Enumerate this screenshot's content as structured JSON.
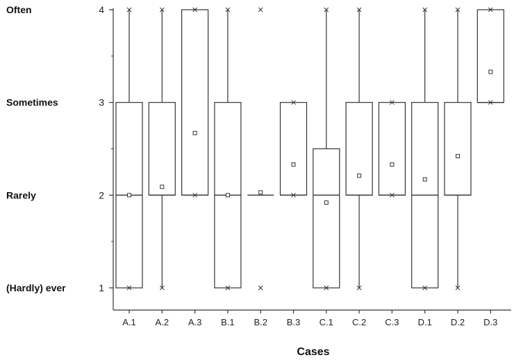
{
  "chart_data": {
    "type": "boxplot",
    "xlabel": "Cases",
    "ylabel": "",
    "ylim": [
      1,
      4
    ],
    "yticks": [
      1,
      2,
      3,
      4
    ],
    "ytick_labels": [
      "1",
      "2",
      "3",
      "4"
    ],
    "verbal_labels": [
      {
        "value": 4,
        "text": "Often"
      },
      {
        "value": 3,
        "text": "Sometimes"
      },
      {
        "value": 2,
        "text": "Rarely"
      },
      {
        "value": 1,
        "text": "(Hardly) ever"
      }
    ],
    "categories": [
      "A.1",
      "A.2",
      "A.3",
      "B.1",
      "B.2",
      "B.3",
      "C.1",
      "C.2",
      "C.3",
      "D.1",
      "D.2",
      "D.3"
    ],
    "boxes": [
      {
        "q1": 1,
        "median": 2,
        "q3": 3,
        "wlow": 1,
        "whigh": 4,
        "mean": 2.0,
        "xmin": 1,
        "xmax": 4
      },
      {
        "q1": 2,
        "median": 2,
        "q3": 3,
        "wlow": 1,
        "whigh": 4,
        "mean": 2.09,
        "xmin": 1,
        "xmax": 4
      },
      {
        "q1": 2,
        "median": 2,
        "q3": 4,
        "wlow": 2,
        "whigh": 4,
        "mean": 2.67,
        "xmin": 2,
        "xmax": 4
      },
      {
        "q1": 1,
        "median": 2,
        "q3": 3,
        "wlow": 1,
        "whigh": 4,
        "mean": 2.0,
        "xmin": 1,
        "xmax": 4
      },
      {
        "q1": 2,
        "median": 2,
        "q3": 2,
        "wlow": 2,
        "whigh": 2,
        "mean": 2.03,
        "xmin": 1,
        "xmax": 4
      },
      {
        "q1": 2,
        "median": 2,
        "q3": 3,
        "wlow": 2,
        "whigh": 3,
        "mean": 2.33,
        "xmin": 2,
        "xmax": 3
      },
      {
        "q1": 1,
        "median": 2,
        "q3": 2.5,
        "wlow": 1,
        "whigh": 4,
        "mean": 1.92,
        "xmin": 1,
        "xmax": 4
      },
      {
        "q1": 2,
        "median": 2,
        "q3": 3,
        "wlow": 1,
        "whigh": 4,
        "mean": 2.21,
        "xmin": 1,
        "xmax": 4
      },
      {
        "q1": 2,
        "median": 2,
        "q3": 3,
        "wlow": 2,
        "whigh": 3,
        "mean": 2.33,
        "xmin": 2,
        "xmax": 3
      },
      {
        "q1": 1,
        "median": 2,
        "q3": 3,
        "wlow": 1,
        "whigh": 4,
        "mean": 2.17,
        "xmin": 1,
        "xmax": 4
      },
      {
        "q1": 2,
        "median": 2,
        "q3": 3,
        "wlow": 1,
        "whigh": 4,
        "mean": 2.42,
        "xmin": 1,
        "xmax": 4
      },
      {
        "q1": 3,
        "median": 3,
        "q3": 4,
        "wlow": 3,
        "whigh": 4,
        "mean": 3.33,
        "xmin": 3,
        "xmax": 4
      }
    ],
    "grid": false,
    "legend": "none"
  }
}
